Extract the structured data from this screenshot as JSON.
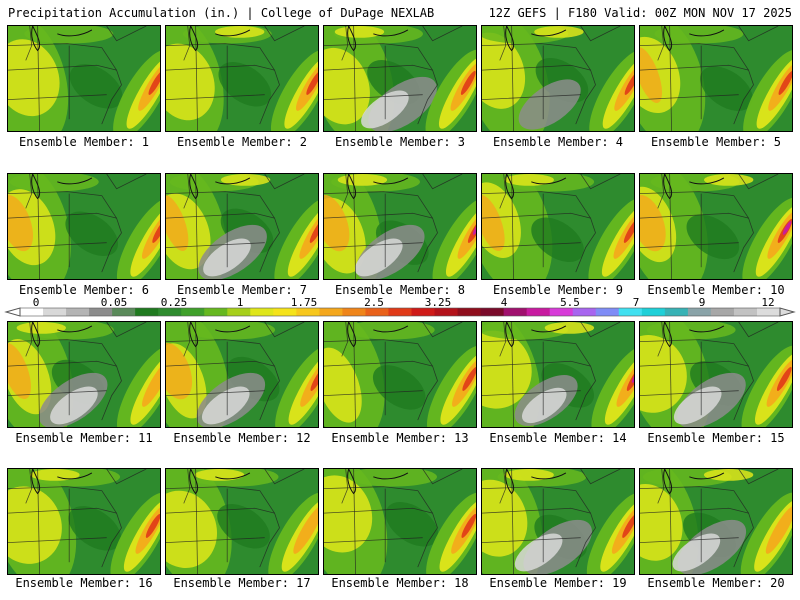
{
  "header": {
    "left": "Precipitation Accumulation (in.) | College of DuPage NEXLAB",
    "right": "12Z GEFS | F180 Valid: 00Z MON NOV 17 2025"
  },
  "colorbar": {
    "tick_labels": [
      "0",
      "0.05",
      "0.25",
      "1",
      "1.75",
      "2.5",
      "3.25",
      "4",
      "5.5",
      "7",
      "9",
      "12"
    ],
    "colors": [
      "#ffffff",
      "#d8d8d8",
      "#b4b4b4",
      "#8c8c8c",
      "#5a8a5a",
      "#1f7a1f",
      "#2e8b2e",
      "#3fa02a",
      "#66b81f",
      "#a6cf1a",
      "#dfe61a",
      "#f5e31a",
      "#f7c71c",
      "#f4a71c",
      "#ef851a",
      "#e9611a",
      "#e03a18",
      "#cf1a18",
      "#b3121a",
      "#8f0d1c",
      "#7a0a2a",
      "#a0106e",
      "#c81aa0",
      "#d73bd8",
      "#a765ef",
      "#7f8cf6",
      "#40e0f0",
      "#1fd0d8",
      "#37b2b5",
      "#8aa3a8",
      "#a7a7a7",
      "#c2c2c2",
      "#dcdcdc"
    ]
  },
  "members": [
    {
      "label": "Ensemble Member: 1"
    },
    {
      "label": "Ensemble Member: 2"
    },
    {
      "label": "Ensemble Member: 3"
    },
    {
      "label": "Ensemble Member: 4"
    },
    {
      "label": "Ensemble Member: 5"
    },
    {
      "label": "Ensemble Member: 6"
    },
    {
      "label": "Ensemble Member: 7"
    },
    {
      "label": "Ensemble Member: 8"
    },
    {
      "label": "Ensemble Member: 9"
    },
    {
      "label": "Ensemble Member: 10"
    },
    {
      "label": "Ensemble Member: 11"
    },
    {
      "label": "Ensemble Member: 12"
    },
    {
      "label": "Ensemble Member: 13"
    },
    {
      "label": "Ensemble Member: 14"
    },
    {
      "label": "Ensemble Member: 15"
    },
    {
      "label": "Ensemble Member: 16"
    },
    {
      "label": "Ensemble Member: 17"
    },
    {
      "label": "Ensemble Member: 18"
    },
    {
      "label": "Ensemble Member: 19"
    },
    {
      "label": "Ensemble Member: 20"
    }
  ],
  "map_colors": {
    "base_green": "#2e8b2e",
    "dark_green": "#1f7a1f",
    "light_green": "#66b81f",
    "yellow": "#dfe61a",
    "orange": "#f4a71c",
    "red": "#e03a18",
    "gray": "#8c8c8c",
    "light_gray": "#d8d8d8",
    "purple": "#c81aa0"
  }
}
